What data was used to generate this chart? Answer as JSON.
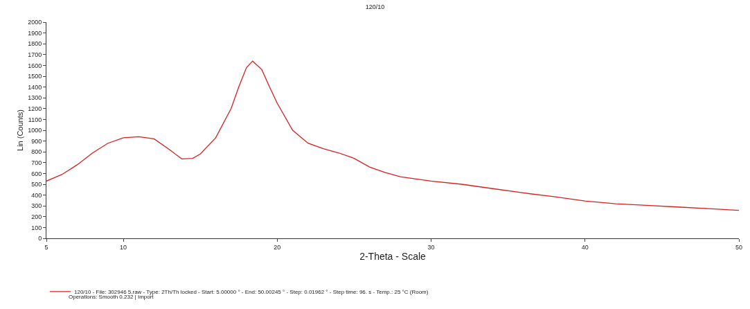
{
  "chart_data": {
    "type": "line",
    "title": "120/10",
    "xlabel": "2-Theta - Scale",
    "ylabel": "Lin (Counts)",
    "xlim": [
      5,
      50
    ],
    "xticks": [
      5,
      10,
      20,
      30,
      40,
      50
    ],
    "ylim": [
      0,
      2000
    ],
    "yticks": [
      0,
      100,
      200,
      300,
      400,
      500,
      600,
      700,
      800,
      900,
      1000,
      1100,
      1200,
      1300,
      1400,
      1500,
      1600,
      1700,
      1800,
      1900,
      2000
    ],
    "legend": "bottom left",
    "marker": "none",
    "line_style": "solid",
    "series": [
      {
        "name": "120/10 - File: 302946 5.raw - Type: 2Th/Th locked - Start: 5.00000 ° - End: 50.00245 ° - Step: 0.01962 ° - Step time: 96. s - Temp.: 25 °C (Room)",
        "color": "#d42020",
        "x": [
          5,
          6,
          7,
          8,
          9,
          10,
          11,
          12,
          13,
          13.8,
          14.5,
          15,
          16,
          17,
          17.5,
          18,
          18.4,
          19,
          19.5,
          20,
          21,
          22,
          23,
          24,
          25,
          26,
          27,
          28,
          30,
          32,
          34,
          36,
          38,
          40,
          42,
          44,
          46,
          48,
          50
        ],
        "values": [
          530,
          590,
          680,
          790,
          880,
          930,
          940,
          920,
          820,
          735,
          740,
          780,
          930,
          1200,
          1400,
          1580,
          1640,
          1560,
          1400,
          1250,
          1000,
          880,
          830,
          790,
          740,
          660,
          610,
          570,
          530,
          500,
          460,
          420,
          385,
          345,
          320,
          305,
          290,
          275,
          259
        ]
      }
    ],
    "annotations": [
      "Operations: Smooth 0.232 | Import"
    ]
  }
}
